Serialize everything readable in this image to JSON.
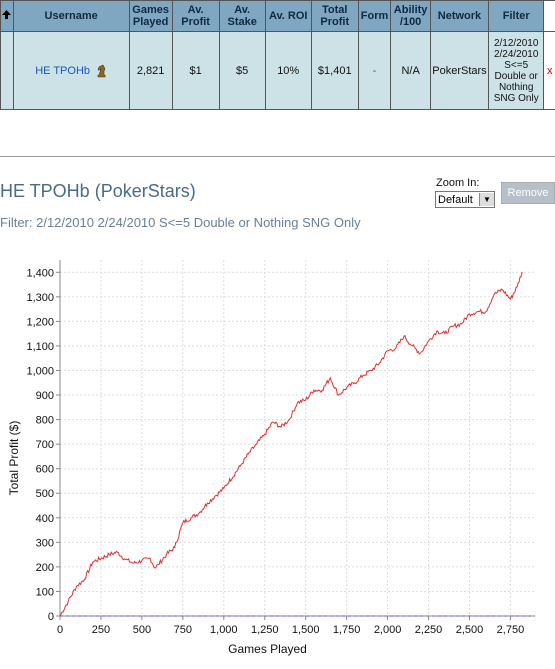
{
  "table": {
    "headers": [
      "Username",
      "Games Played",
      "Av. Profit",
      "Av. Stake",
      "Av. ROI",
      "Total Profit",
      "Form",
      "Ability /100",
      "Network",
      "Filter"
    ],
    "row": {
      "username": "HE TPOHb",
      "games_played": "2,821",
      "av_profit": "$1",
      "av_stake": "$5",
      "av_roi": "10%",
      "total_profit": "$1,401",
      "form": "-",
      "ability": "N/A",
      "network": "PokerStars",
      "filter_lines": [
        "2/12/2010",
        "2/24/2010",
        "S<=5",
        "Double or",
        "Nothing",
        "SNG Only"
      ],
      "remove_mark": "x"
    }
  },
  "graph_panel": {
    "title": "HE TPOHb (PokerStars)",
    "filter": "Filter: 2/12/2010 2/24/2010 S<=5 Double or Nothing SNG Only",
    "zoom_label": "Zoom In:",
    "zoom_value": "Default",
    "remove_label": "Remove"
  },
  "chart_data": {
    "type": "line",
    "xlabel": "Games Played",
    "ylabel": "Total Profit ($)",
    "xlim": [
      0,
      2900
    ],
    "ylim": [
      0,
      1450
    ],
    "x_ticks": [
      "0",
      "250",
      "500",
      "750",
      "1,000",
      "1,250",
      "1,500",
      "1,750",
      "2,000",
      "2,250",
      "2,500",
      "2,750"
    ],
    "y_ticks": [
      "0",
      "100",
      "200",
      "300",
      "400",
      "500",
      "600",
      "700",
      "800",
      "900",
      "1,000",
      "1,100",
      "1,200",
      "1,300",
      "1,400"
    ],
    "series": [
      {
        "color": "#e03030",
        "x": [
          0,
          50,
          100,
          150,
          200,
          300,
          350,
          400,
          450,
          550,
          580,
          600,
          650,
          700,
          750,
          800,
          850,
          900,
          950,
          1000,
          1100,
          1150,
          1200,
          1250,
          1300,
          1350,
          1400,
          1450,
          1500,
          1550,
          1600,
          1650,
          1700,
          1750,
          1800,
          1850,
          1900,
          1950,
          2000,
          2050,
          2100,
          2150,
          2200,
          2250,
          2300,
          2350,
          2400,
          2450,
          2500,
          2550,
          2600,
          2650,
          2700,
          2750,
          2790,
          2821
        ],
        "y": [
          0,
          60,
          120,
          150,
          220,
          250,
          260,
          230,
          215,
          235,
          195,
          210,
          250,
          280,
          380,
          400,
          420,
          460,
          490,
          520,
          610,
          660,
          700,
          740,
          790,
          770,
          800,
          870,
          880,
          920,
          920,
          970,
          900,
          930,
          950,
          980,
          1000,
          1030,
          1080,
          1090,
          1140,
          1100,
          1070,
          1120,
          1160,
          1150,
          1180,
          1190,
          1230,
          1240,
          1240,
          1310,
          1330,
          1290,
          1340,
          1401
        ]
      }
    ],
    "zero_line": {
      "color": "#5555cc",
      "style": "dashed"
    },
    "grid": true,
    "legend": "none"
  }
}
